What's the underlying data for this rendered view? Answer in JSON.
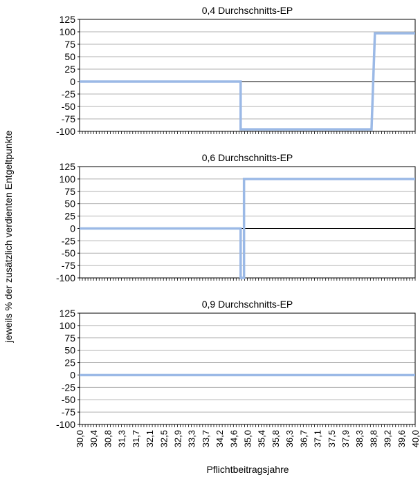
{
  "ylabel": "jeweils % der zusätzlich verdienten Entgeltpunkte",
  "xlabel": "Pflichtbeitragsjahre",
  "colors": {
    "series": "#9bb9e6",
    "grid": "#b0b0b0",
    "zero": "#000000",
    "frame": "#000000"
  },
  "chart_data": [
    {
      "type": "line",
      "title": "0,4 Durchschnitts-EP",
      "ylim": [
        -100,
        125
      ],
      "yticks": [
        125,
        100,
        75,
        50,
        25,
        0,
        -25,
        -50,
        -75,
        -100
      ],
      "xlim": [
        30.0,
        40.0
      ],
      "grid": true,
      "x_tick_labels": [],
      "points": [
        [
          30.0,
          0
        ],
        [
          34.8,
          0
        ],
        [
          34.8,
          -96
        ],
        [
          38.7,
          -96
        ],
        [
          38.8,
          97
        ],
        [
          40.0,
          97
        ]
      ]
    },
    {
      "type": "line",
      "title": "0,6 Durchschnitts-EP",
      "ylim": [
        -100,
        125
      ],
      "yticks": [
        125,
        100,
        75,
        50,
        25,
        0,
        -25,
        -50,
        -75,
        -100
      ],
      "xlim": [
        30.0,
        40.0
      ],
      "grid": true,
      "x_tick_labels": [],
      "points": [
        [
          30.0,
          0
        ],
        [
          34.8,
          0
        ],
        [
          34.8,
          -100
        ],
        [
          34.9,
          -100
        ],
        [
          34.9,
          100
        ],
        [
          40.0,
          100
        ]
      ]
    },
    {
      "type": "line",
      "title": "0,9 Durchschnitts-EP",
      "ylim": [
        -100,
        125
      ],
      "yticks": [
        125,
        100,
        75,
        50,
        25,
        0,
        -25,
        -50,
        -75,
        -100
      ],
      "xlim": [
        30.0,
        40.0
      ],
      "grid": true,
      "x_tick_labels": [
        "30,0",
        "30,4",
        "30,8",
        "31,3",
        "31,7",
        "32,1",
        "32,5",
        "32,9",
        "33,3",
        "33,7",
        "34,2",
        "34,6",
        "35,0",
        "35,4",
        "35,8",
        "36,3",
        "36,7",
        "37,1",
        "37,5",
        "37,9",
        "38,3",
        "38,8",
        "39,2",
        "39,6",
        "40,0"
      ],
      "points": [
        [
          30.0,
          0
        ],
        [
          40.0,
          0
        ]
      ]
    }
  ]
}
